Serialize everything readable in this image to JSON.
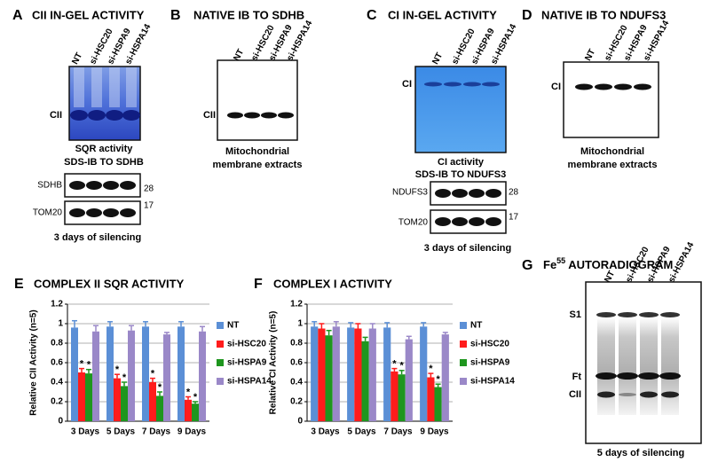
{
  "panel_a": {
    "letter": "A",
    "title": "CII IN-GEL ACTIVITY",
    "lanes": [
      "NT",
      "si-HSC20",
      "si-HSPA9",
      "si-HSPA14"
    ],
    "band_label": "CII",
    "caption": "SQR activity",
    "blot_title": "SDS-IB TO SDHB",
    "blots": [
      {
        "label": "SDHB",
        "marker": 28
      },
      {
        "label": "TOM20",
        "marker": 17
      }
    ],
    "footer": "3 days of silencing"
  },
  "panel_b": {
    "letter": "B",
    "title": "NATIVE IB TO SDHB",
    "lanes": [
      "NT",
      "si-HSC20",
      "si-HSPA9",
      "si-HSPA14"
    ],
    "band_label": "CII",
    "caption_lines": [
      "Mitochondrial",
      "membrane extracts"
    ]
  },
  "panel_c": {
    "letter": "C",
    "title": "CI IN-GEL ACTIVITY",
    "lanes": [
      "NT",
      "si-HSC20",
      "si-HSPA9",
      "si-HSPA14"
    ],
    "band_label": "CI",
    "caption": "CI activity",
    "blot_title": "SDS-IB TO NDUFS3",
    "blots": [
      {
        "label": "NDUFS3",
        "marker": 28
      },
      {
        "label": "TOM20",
        "marker": 17
      }
    ],
    "footer": "3 days of silencing"
  },
  "panel_d": {
    "letter": "D",
    "title": "NATIVE IB TO NDUFS3",
    "lanes": [
      "NT",
      "si-HSC20",
      "si-HSPA9",
      "si-HSPA14"
    ],
    "band_label": "CI",
    "caption_lines": [
      "Mitochondrial",
      "membrane extracts"
    ]
  },
  "panel_g": {
    "letter": "G",
    "title_main": "Fe",
    "title_sup": 55,
    "title_rest": "AUTORADIOGRAM",
    "lanes": [
      "NT",
      "si-HSC20",
      "si-HSPA9",
      "si-HSPA14"
    ],
    "band_labels": [
      "S1",
      "Ft",
      "CII"
    ],
    "footer": "5 days of silencing"
  },
  "chart_data": [
    {
      "type": "bar",
      "panel_label": "E",
      "title": "COMPLEX II SQR ACTIVITY",
      "y_label": "Relative CII Activity (n=5)",
      "categories": [
        "3 Days",
        "5 Days",
        "7 Days",
        "9 Days"
      ],
      "ylim": [
        0,
        1.2
      ],
      "yticks": [
        0,
        0.2,
        0.4,
        0.6,
        0.8,
        1,
        1.2
      ],
      "grid": true,
      "legend": "right",
      "significance_label": "*",
      "series": [
        {
          "name": "NT",
          "color": "#5b8fd6",
          "values": [
            0.96,
            0.97,
            0.97,
            0.97
          ],
          "errors": [
            0.07,
            0.05,
            0.05,
            0.05
          ],
          "significant": [
            false,
            false,
            false,
            false
          ]
        },
        {
          "name": "si-HSC20",
          "color": "#ff1c1c",
          "values": [
            0.5,
            0.44,
            0.4,
            0.22
          ],
          "errors": [
            0.04,
            0.04,
            0.04,
            0.03
          ],
          "significant": [
            true,
            true,
            true,
            true
          ]
        },
        {
          "name": "si-HSPA9",
          "color": "#1e961e",
          "values": [
            0.49,
            0.36,
            0.26,
            0.18
          ],
          "errors": [
            0.04,
            0.04,
            0.04,
            0.02
          ],
          "significant": [
            true,
            true,
            true,
            true
          ]
        },
        {
          "name": "si-HSPA14",
          "color": "#9a88c8",
          "values": [
            0.92,
            0.93,
            0.89,
            0.92
          ],
          "errors": [
            0.06,
            0.05,
            0.02,
            0.05
          ],
          "significant": [
            false,
            false,
            false,
            false
          ]
        }
      ]
    },
    {
      "type": "bar",
      "panel_label": "F",
      "title": "COMPLEX I ACTIVITY",
      "y_label": "Relative CI Activity (n=5)",
      "categories": [
        "3 Days",
        "5 Days",
        "7 Days",
        "9 Days"
      ],
      "ylim": [
        0,
        1.2
      ],
      "yticks": [
        0,
        0.2,
        0.4,
        0.6,
        0.8,
        1,
        1.2
      ],
      "grid": true,
      "legend": "right",
      "significance_label": "*",
      "series": [
        {
          "name": "NT",
          "color": "#5b8fd6",
          "values": [
            0.97,
            0.96,
            0.96,
            0.97
          ],
          "errors": [
            0.05,
            0.05,
            0.05,
            0.04
          ],
          "significant": [
            false,
            false,
            false,
            false
          ]
        },
        {
          "name": "si-HSC20",
          "color": "#ff1c1c",
          "values": [
            0.95,
            0.95,
            0.51,
            0.45
          ],
          "errors": [
            0.05,
            0.05,
            0.03,
            0.04
          ],
          "significant": [
            false,
            false,
            true,
            true
          ]
        },
        {
          "name": "si-HSPA9",
          "color": "#1e961e",
          "values": [
            0.88,
            0.82,
            0.48,
            0.35
          ],
          "errors": [
            0.05,
            0.04,
            0.04,
            0.03
          ],
          "significant": [
            false,
            false,
            true,
            true
          ]
        },
        {
          "name": "si-HSPA14",
          "color": "#9a88c8",
          "values": [
            0.97,
            0.95,
            0.84,
            0.89
          ],
          "errors": [
            0.05,
            0.05,
            0.03,
            0.02
          ],
          "significant": [
            false,
            false,
            false,
            false
          ]
        }
      ]
    }
  ]
}
